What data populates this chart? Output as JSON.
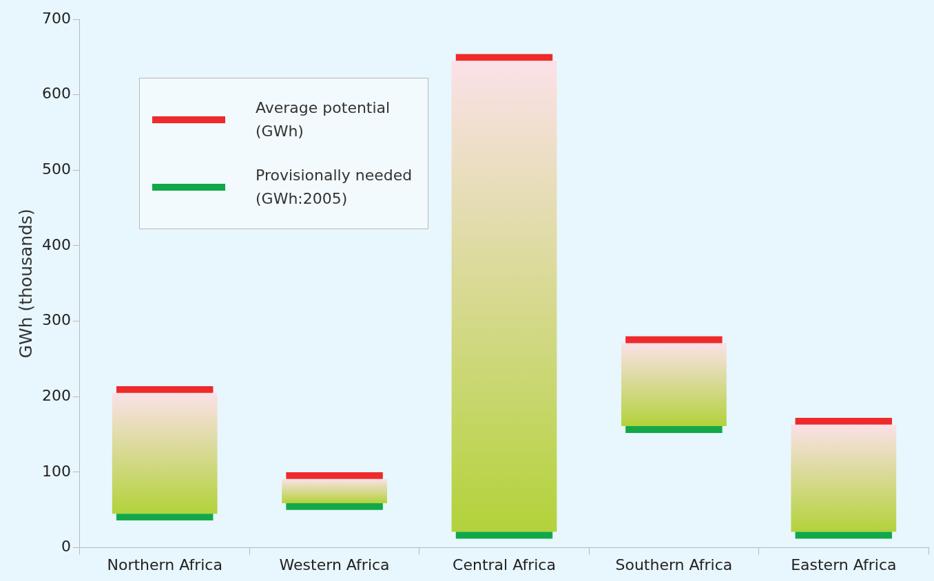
{
  "chart_data": {
    "type": "bar",
    "ylabel": "GWh (thousands)",
    "categories": [
      "Northern Africa",
      "Western Africa",
      "Central Africa",
      "Southern Africa",
      "Eastern Africa"
    ],
    "ylim": [
      0,
      700
    ],
    "yticks": [
      0,
      100,
      200,
      300,
      400,
      500,
      600,
      700
    ],
    "legend": "top left",
    "grid": false,
    "series": [
      {
        "color": "#b3d23a",
        "base": [
          45,
          59,
          21,
          161,
          21
        ],
        "values": [
          160,
          32,
          624,
          110,
          142
        ]
      },
      {
        "name": "Average potential (GWh)",
        "color": "#ee2a2a",
        "base": [
          205,
          91,
          645,
          271,
          163
        ],
        "values": [
          9,
          9,
          9,
          9,
          9
        ]
      },
      {
        "name": "Provisionally needed (GWh:2005)",
        "color": "#12a84a",
        "base": [
          36,
          50,
          12,
          152,
          12
        ],
        "values": [
          9,
          9,
          9,
          9,
          9
        ]
      }
    ]
  }
}
